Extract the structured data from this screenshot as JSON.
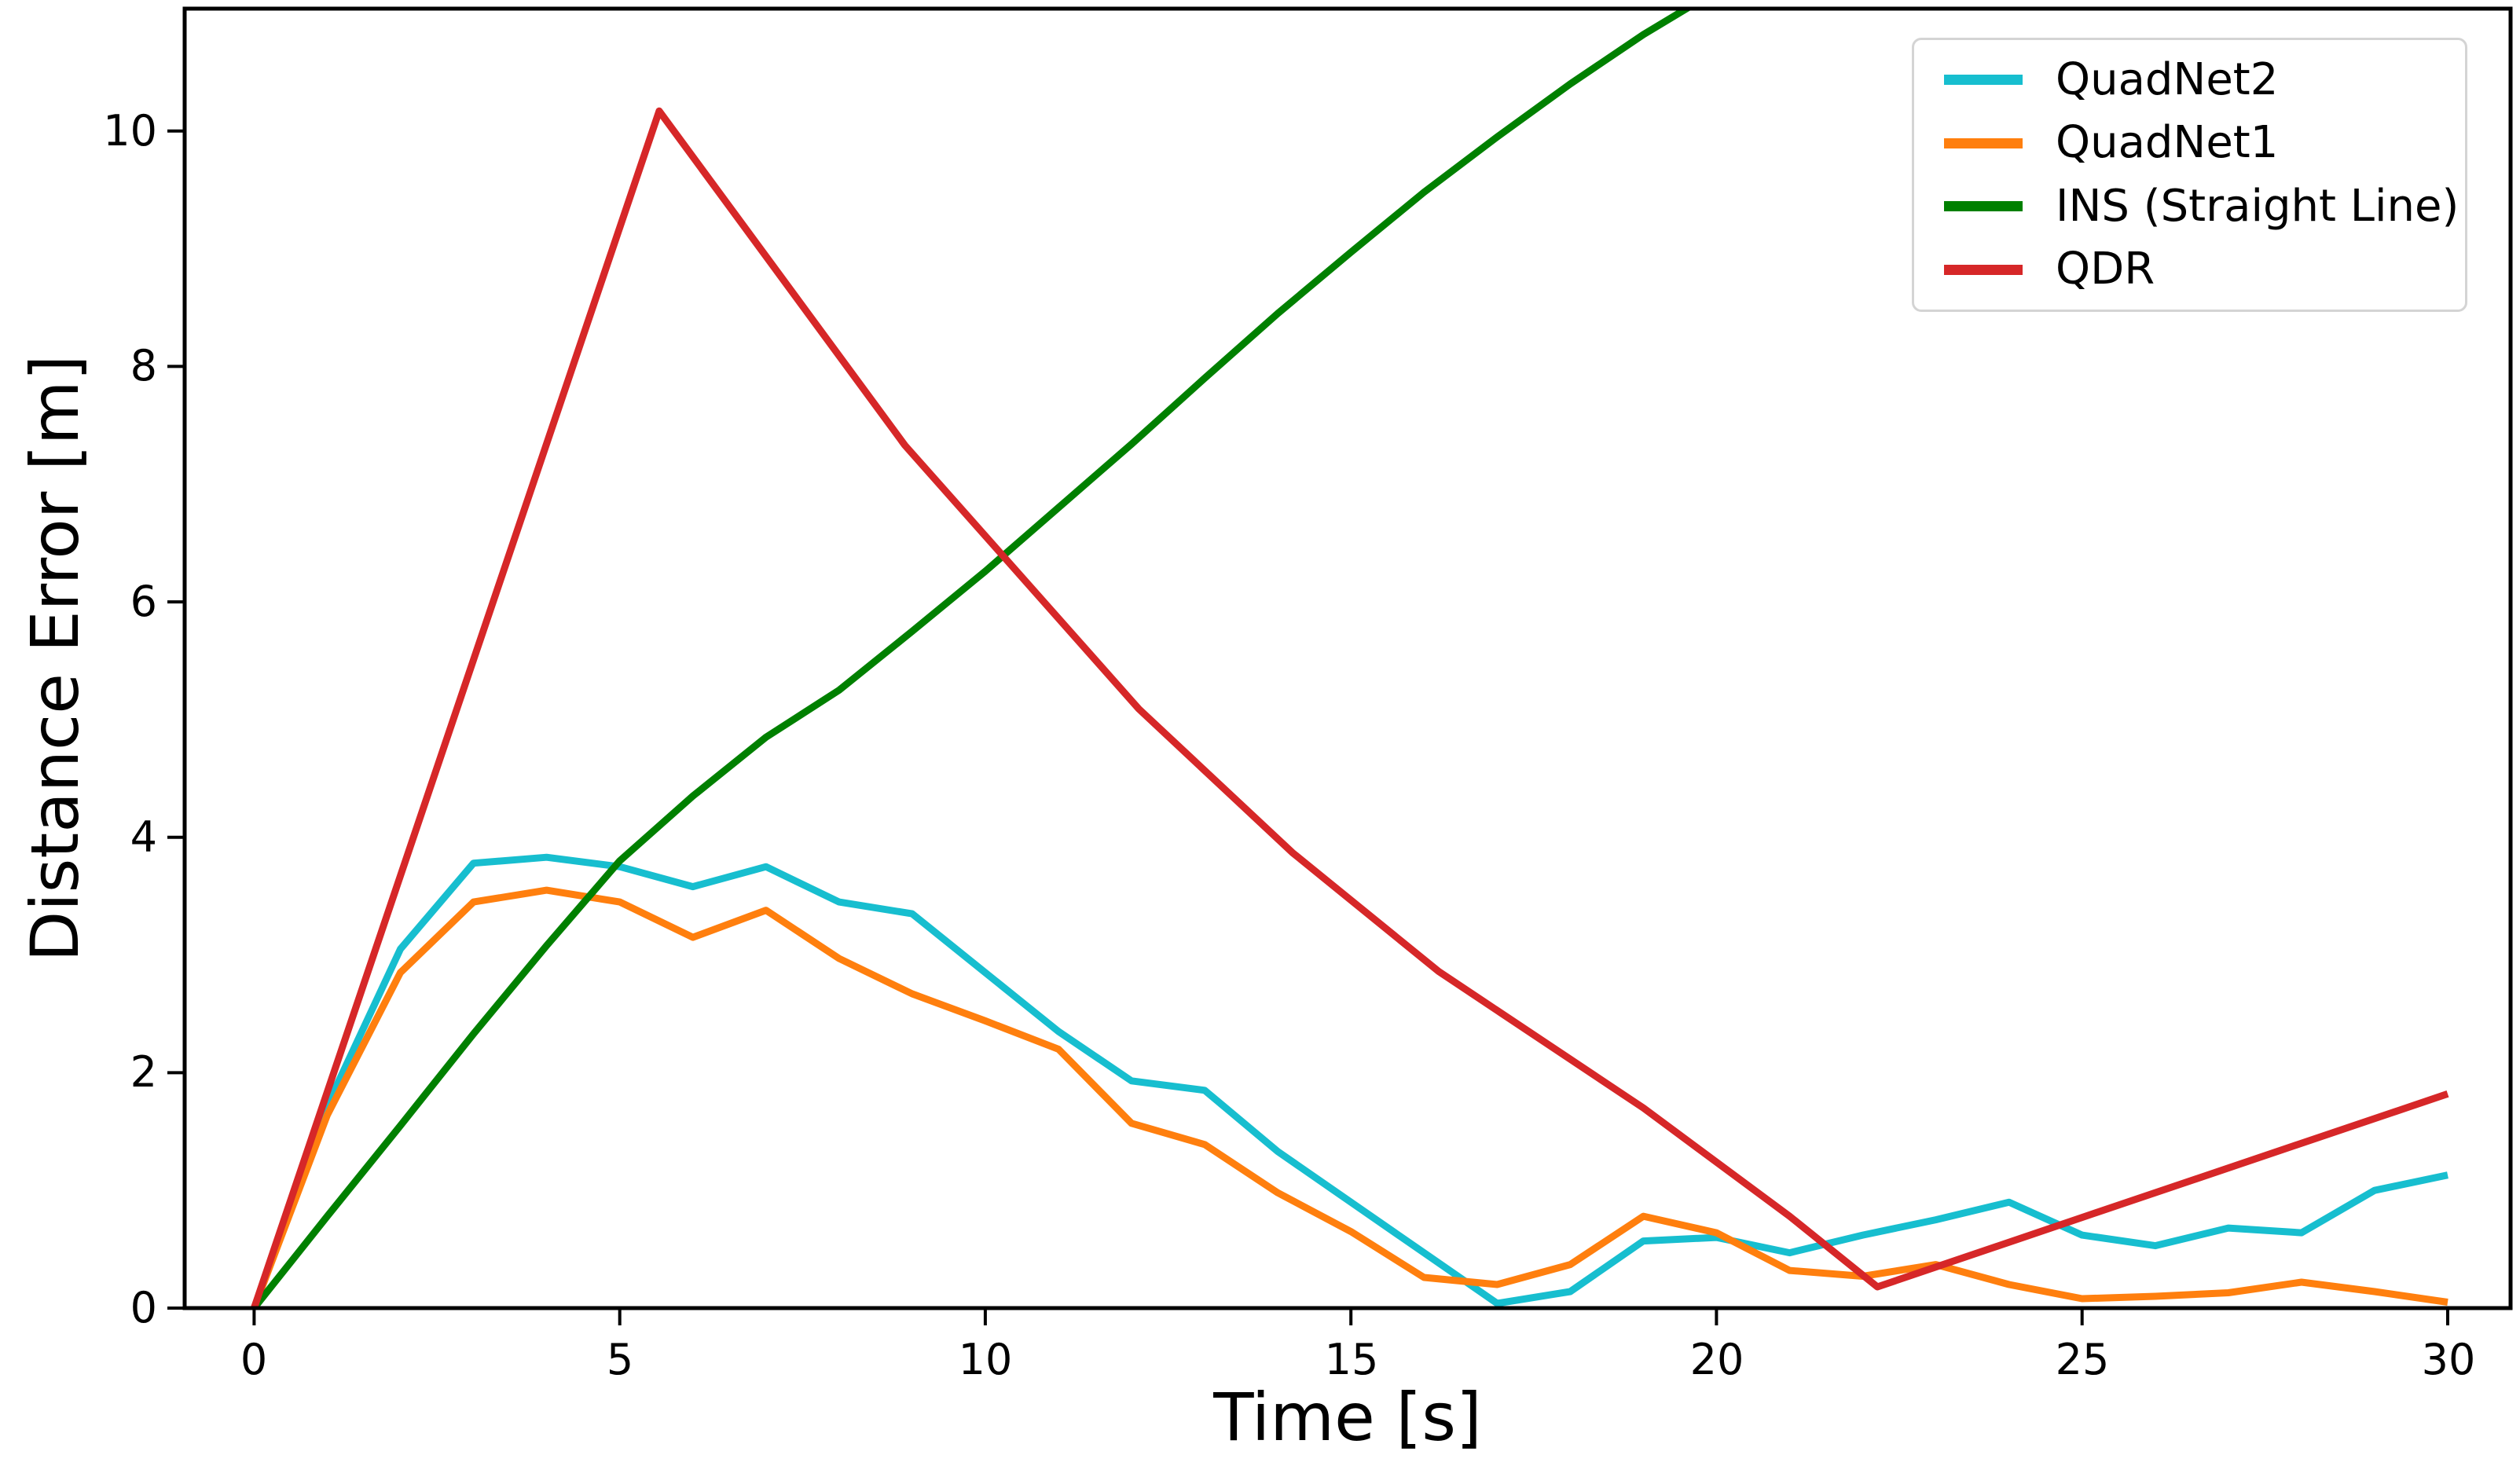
{
  "chart_data": {
    "type": "line",
    "title": "",
    "xlabel": "Time [s]",
    "ylabel": "Distance Error [m]",
    "xlim": [
      -0.95,
      30.86
    ],
    "ylim": [
      0,
      11.04
    ],
    "xticks": [
      0,
      5,
      10,
      15,
      20,
      25,
      30
    ],
    "yticks": [
      0,
      2,
      4,
      6,
      8,
      10
    ],
    "grid": false,
    "legend_position": "upper right",
    "series": [
      {
        "name": "QuadNet2",
        "color": "#17becf",
        "points": [
          [
            0,
            0
          ],
          [
            1,
            1.72
          ],
          [
            2,
            3.05
          ],
          [
            3,
            3.78
          ],
          [
            4,
            3.83
          ],
          [
            5,
            3.75
          ],
          [
            6,
            3.58
          ],
          [
            7,
            3.75
          ],
          [
            8,
            3.45
          ],
          [
            9,
            3.35
          ],
          [
            10,
            2.85
          ],
          [
            11,
            2.35
          ],
          [
            12,
            1.93
          ],
          [
            13,
            1.85
          ],
          [
            14,
            1.33
          ],
          [
            15,
            0.9
          ],
          [
            16,
            0.47
          ],
          [
            17,
            0.04
          ],
          [
            18,
            0.14
          ],
          [
            19,
            0.57
          ],
          [
            20,
            0.6
          ],
          [
            21,
            0.47
          ],
          [
            22,
            0.62
          ],
          [
            23,
            0.75
          ],
          [
            24,
            0.9
          ],
          [
            25,
            0.62
          ],
          [
            26,
            0.53
          ],
          [
            27,
            0.68
          ],
          [
            28,
            0.64
          ],
          [
            29,
            1.0
          ],
          [
            30,
            1.13
          ]
        ]
      },
      {
        "name": "QuadNet1",
        "color": "#ff7f0e",
        "points": [
          [
            0,
            0
          ],
          [
            1,
            1.64
          ],
          [
            2,
            2.85
          ],
          [
            3,
            3.45
          ],
          [
            4,
            3.55
          ],
          [
            5,
            3.45
          ],
          [
            6,
            3.15
          ],
          [
            7,
            3.38
          ],
          [
            8,
            2.97
          ],
          [
            9,
            2.67
          ],
          [
            10,
            2.44
          ],
          [
            11,
            2.2
          ],
          [
            12,
            1.57
          ],
          [
            13,
            1.39
          ],
          [
            14,
            0.98
          ],
          [
            15,
            0.65
          ],
          [
            16,
            0.26
          ],
          [
            17,
            0.2
          ],
          [
            18,
            0.37
          ],
          [
            19,
            0.78
          ],
          [
            20,
            0.64
          ],
          [
            21,
            0.32
          ],
          [
            22,
            0.27
          ],
          [
            23,
            0.37
          ],
          [
            24,
            0.2
          ],
          [
            25,
            0.08
          ],
          [
            26,
            0.1
          ],
          [
            27,
            0.13
          ],
          [
            28,
            0.22
          ],
          [
            29,
            0.14
          ],
          [
            30,
            0.05
          ]
        ]
      },
      {
        "name": "INS (Straight Line)",
        "color": "#008000",
        "points": [
          [
            0,
            0
          ],
          [
            1,
            0.78
          ],
          [
            2,
            1.55
          ],
          [
            3,
            2.33
          ],
          [
            4,
            3.08
          ],
          [
            5,
            3.8
          ],
          [
            6,
            4.35
          ],
          [
            7,
            4.85
          ],
          [
            8,
            5.25
          ],
          [
            9,
            5.75
          ],
          [
            10,
            6.26
          ],
          [
            11,
            6.8
          ],
          [
            12,
            7.34
          ],
          [
            13,
            7.9
          ],
          [
            14,
            8.45
          ],
          [
            15,
            8.97
          ],
          [
            16,
            9.48
          ],
          [
            17,
            9.95
          ],
          [
            18,
            10.4
          ],
          [
            19,
            10.82
          ],
          [
            19.75,
            11.1
          ]
        ]
      },
      {
        "name": "QDR",
        "color": "#d62728",
        "points": [
          [
            0,
            0
          ],
          [
            5.54,
            10.17
          ],
          [
            8.9,
            7.33
          ],
          [
            12.1,
            5.09
          ],
          [
            14.2,
            3.87
          ],
          [
            16.2,
            2.86
          ],
          [
            19,
            1.7
          ],
          [
            21,
            0.78
          ],
          [
            22.2,
            0.18
          ],
          [
            25,
            0.77
          ],
          [
            30,
            1.82
          ]
        ]
      }
    ]
  },
  "axes": {
    "xtick_labels": [
      "0",
      "5",
      "10",
      "15",
      "20",
      "25",
      "30"
    ],
    "ytick_labels": [
      "0",
      "2",
      "4",
      "6",
      "8",
      "10"
    ]
  }
}
